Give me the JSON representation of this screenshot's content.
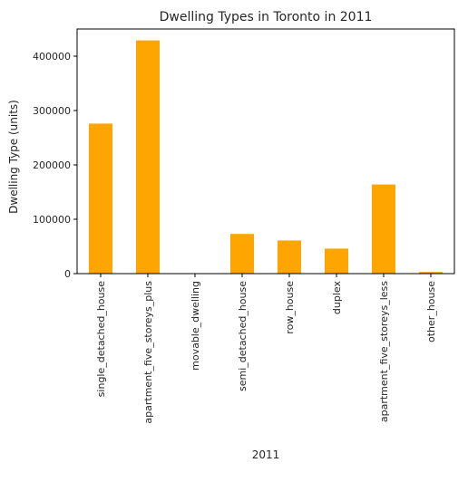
{
  "chart_data": {
    "type": "bar",
    "title": "Dwelling Types in Toronto in 2011",
    "xlabel": "2011",
    "ylabel": "Dwelling Type (units)",
    "categories": [
      "single_detached_house",
      "apartment_five_storeys_plus",
      "movable_dwelling",
      "semi_detached_house",
      "row_house",
      "duplex",
      "apartment_five_storeys_less",
      "other_house"
    ],
    "values": [
      276000,
      429000,
      300,
      73000,
      61000,
      46000,
      164000,
      3000
    ],
    "ylim": [
      0,
      450000
    ],
    "yticks": [
      0,
      100000,
      200000,
      300000,
      400000
    ],
    "bar_color": "#ffa500",
    "grid": false,
    "legend": "none"
  }
}
